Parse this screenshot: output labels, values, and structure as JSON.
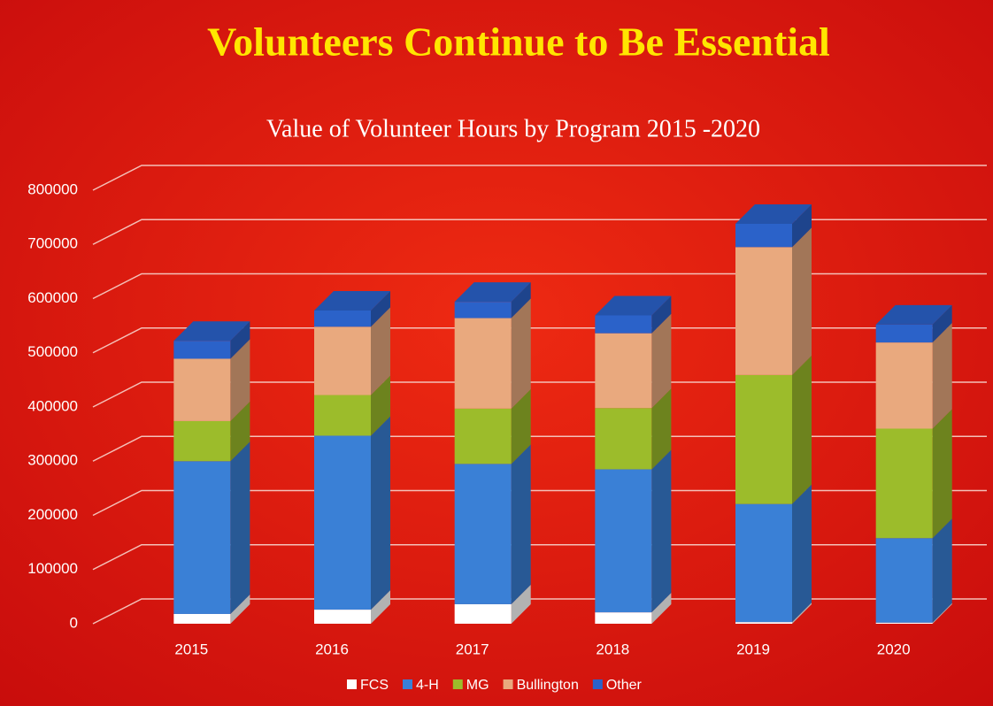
{
  "chart_data": {
    "type": "bar3d_stacked",
    "title": "Volunteers Continue to Be Essential",
    "subtitle": "Value of Volunteer Hours by Program 2015  -2020",
    "categories": [
      "2015",
      "2016",
      "2017",
      "2018",
      "2019",
      "2020"
    ],
    "series": [
      {
        "name": "FCS",
        "color": "#ffffff",
        "values": [
          18000,
          26000,
          36000,
          21000,
          3000,
          2000
        ]
      },
      {
        "name": "4-H",
        "color": "#3a80d6",
        "values": [
          282000,
          321000,
          259000,
          264000,
          218000,
          156000
        ]
      },
      {
        "name": "MG",
        "color": "#9cbc2b",
        "values": [
          74000,
          75000,
          102000,
          113000,
          238000,
          202000
        ]
      },
      {
        "name": "Bullington",
        "color": "#e9a97e",
        "values": [
          115000,
          126000,
          167000,
          138000,
          236000,
          159000
        ]
      },
      {
        "name": "Other",
        "color": "#2b62c9",
        "values": [
          33000,
          30000,
          30000,
          33000,
          43000,
          33000
        ]
      }
    ],
    "ylim": [
      0,
      800000
    ],
    "yticks": [
      0,
      100000,
      200000,
      300000,
      400000,
      500000,
      600000,
      700000,
      800000
    ],
    "grid": true
  }
}
